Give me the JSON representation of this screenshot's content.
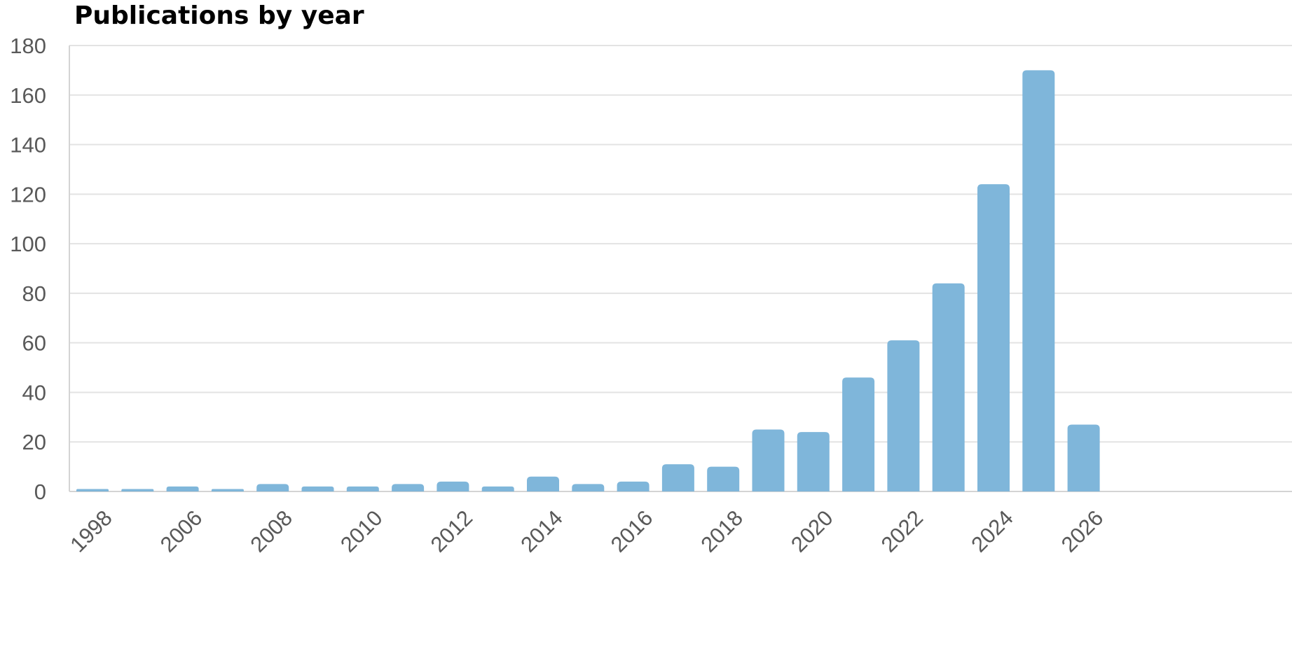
{
  "chart_data": {
    "type": "bar",
    "title": "Publications by year",
    "xlabel": "",
    "ylabel": "",
    "ylim": [
      0,
      180
    ],
    "yticks": [
      0,
      20,
      40,
      60,
      80,
      100,
      120,
      140,
      160,
      180
    ],
    "grid": true,
    "legend": "none",
    "bar_color": "#7fb6da",
    "grid_color": "#e3e3e3",
    "axis_color": "#d4d4d4",
    "tick_label_color": "#595959",
    "categories": [
      "1998",
      "",
      "2006",
      "",
      "2008",
      "",
      "2010",
      "",
      "2012",
      "",
      "2014",
      "",
      "2016",
      "",
      "2018",
      "",
      "2020",
      "",
      "2022",
      "",
      "2024",
      "",
      "2026"
    ],
    "values": [
      1,
      1,
      2,
      1,
      3,
      2,
      2,
      3,
      4,
      2,
      6,
      3,
      4,
      11,
      10,
      25,
      24,
      46,
      61,
      84,
      124,
      170,
      27
    ],
    "x_tick_labels": [
      "1998",
      "2006",
      "2008",
      "2010",
      "2012",
      "2014",
      "2016",
      "2018",
      "2020",
      "2022",
      "2024",
      "2026"
    ]
  }
}
